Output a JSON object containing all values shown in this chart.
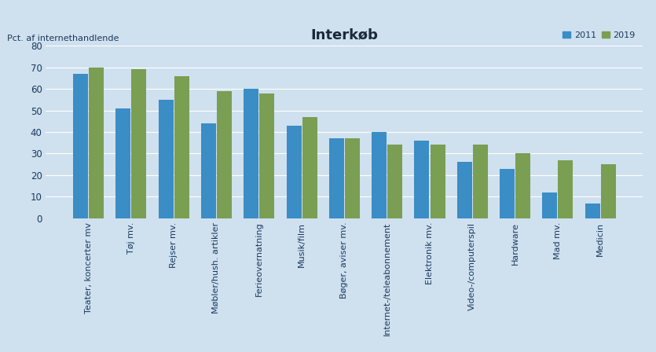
{
  "title": "Interkøb",
  "ylabel": "Pct. af internethandlende",
  "categories": [
    "Teater, koncerter mv",
    "Tøj mv.",
    "Rejser mv.",
    "Møbler/hush. artikler",
    "Ferieovernatning",
    "Musik/film",
    "Bøger, aviser mv.",
    "Internet-/teleabonnement",
    "Elektronik mv.",
    "Video-/computerspil",
    "Hardware",
    "Mad mv.",
    "Medicin"
  ],
  "values_2011": [
    67,
    51,
    55,
    44,
    60,
    43,
    37,
    40,
    36,
    26,
    23,
    12,
    7
  ],
  "values_2019": [
    70,
    69,
    66,
    59,
    58,
    47,
    37,
    34,
    34,
    34,
    30,
    27,
    25
  ],
  "color_2011": "#3a8dc5",
  "color_2019": "#7a9e52",
  "background_color": "#cfe0ef",
  "grid_color": "#ffffff",
  "ylim": [
    0,
    80
  ],
  "yticks": [
    0,
    10,
    20,
    30,
    40,
    50,
    60,
    70,
    80
  ],
  "legend_2011": "2011",
  "legend_2019": "2019",
  "title_fontsize": 13,
  "label_fontsize": 8,
  "tick_fontsize": 8.5
}
